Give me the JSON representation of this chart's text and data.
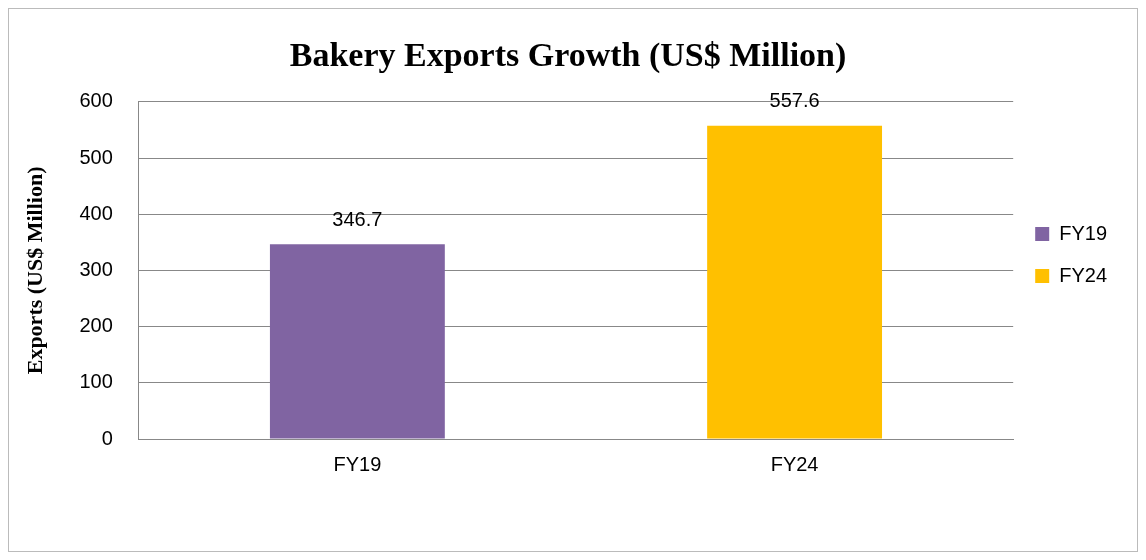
{
  "chart_data": {
    "type": "bar",
    "title": "Bakery Exports Growth (US$ Million)",
    "ylabel": "Exports (US$ Million)",
    "categories": [
      "FY19",
      "FY24"
    ],
    "series": [
      {
        "name": "FY19",
        "color": "#8064a2",
        "values": [
          346.7,
          null
        ]
      },
      {
        "name": "FY24",
        "color": "#ffc000",
        "values": [
          null,
          557.6
        ]
      }
    ],
    "ylim": [
      0,
      600
    ],
    "yticks": [
      0,
      100,
      200,
      300,
      400,
      500,
      600
    ],
    "grid": "y",
    "legend": "right",
    "data_labels": true
  }
}
